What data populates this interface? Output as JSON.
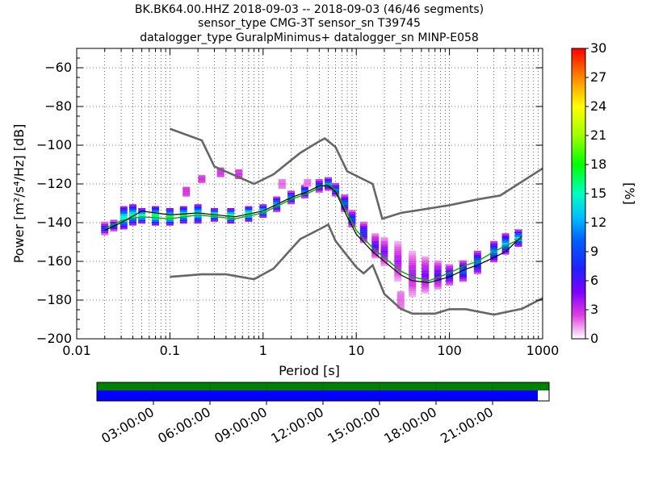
{
  "header": {
    "line1": "BK.BK64.00.HHZ   2018-09-03 -- 2018-09-03  (46/46 segments)",
    "line2": "sensor_type CMG-3T sensor_sn T39745",
    "line3": "datalogger_type GuralpMinimus+ datalogger_sn MINP-E058"
  },
  "colors": {
    "noise_models": "#666666",
    "coverage_top": "#008000",
    "coverage_bottom": "#0000ff",
    "mean_line": "#000000",
    "mode_line": "#00aa00"
  },
  "chart_data": [
    {
      "type": "heatmap",
      "xlabel": "Period [s]",
      "ylabel": "Power [m²/s⁴/Hz] [dB]",
      "x_scale": "log",
      "xlim": [
        0.01,
        1000
      ],
      "ylim": [
        -200,
        -50
      ],
      "x_ticks": [
        0.01,
        0.1,
        1,
        10,
        100,
        1000
      ],
      "x_tick_labels": [
        "0.01",
        "0.1",
        "1",
        "10",
        "100",
        "1000"
      ],
      "y_ticks": [
        -200,
        -180,
        -160,
        -140,
        -120,
        -100,
        -80,
        -60
      ],
      "y_tick_labels": [
        "−200",
        "−180",
        "−160",
        "−140",
        "−120",
        "−100",
        "−80",
        "−60"
      ],
      "grid": true,
      "colorbar": {
        "label": "[%]",
        "range": [
          0,
          30
        ],
        "ticks": [
          0,
          3,
          6,
          9,
          12,
          15,
          18,
          21,
          24,
          27,
          30
        ],
        "tick_labels": [
          "0",
          "3",
          "6",
          "9",
          "12",
          "15",
          "18",
          "21",
          "24",
          "27",
          "30"
        ]
      },
      "series": [
        {
          "x": [
            0.1,
            0.22,
            0.3,
            0.8,
            1.3,
            2.5,
            4.0,
            4.6,
            6.0,
            8.0,
            15.0,
            19.0,
            30.0,
            100.0,
            200.0,
            350.0,
            1000.0
          ],
          "y": [
            -91.5,
            -97.5,
            -111,
            -120,
            -115,
            -104,
            -98,
            -96.5,
            -101,
            -113.5,
            -120,
            -138,
            -135,
            -131,
            -128,
            -126,
            -112
          ]
        },
        {
          "x": [
            0.1,
            0.22,
            0.4,
            0.8,
            1.3,
            2.5,
            4.0,
            5.0,
            6.0,
            10.0,
            12.0,
            15.0,
            20.0,
            30.0,
            40.0,
            70.0,
            100.0,
            150.0,
            300.0,
            600.0,
            1000.0
          ],
          "y": [
            -168,
            -166.7,
            -166.7,
            -169.2,
            -163.7,
            -148.5,
            -143.5,
            -141,
            -149.5,
            -163,
            -166.2,
            -162,
            -176.8,
            -184.5,
            -187,
            -187,
            -184.7,
            -184.7,
            -187.5,
            -184.5,
            -179
          ]
        }
      ],
      "mean_line": {
        "x": [
          0.02,
          0.03,
          0.05,
          0.1,
          0.2,
          0.5,
          1.0,
          2.0,
          3.0,
          4.0,
          5.0,
          6.0,
          8.0,
          10.0,
          15.0,
          20.0,
          30.0,
          40.0,
          60.0,
          100.0,
          150.0,
          200.0,
          300.0,
          400.0,
          600.0
        ],
        "y": [
          -144,
          -140,
          -134,
          -136,
          -135,
          -137,
          -134,
          -127,
          -124,
          -121,
          -121,
          -124,
          -137,
          -146,
          -155,
          -160,
          -167,
          -170,
          -171,
          -168,
          -164,
          -162,
          -158,
          -155,
          -147
        ]
      },
      "mode_line": {
        "x": [
          0.02,
          0.03,
          0.05,
          0.1,
          0.2,
          0.5,
          1.0,
          2.0,
          3.0,
          4.0,
          5.0,
          6.0,
          8.0,
          10.0,
          15.0,
          20.0,
          30.0,
          40.0,
          60.0,
          100.0,
          150.0,
          200.0,
          300.0,
          400.0,
          600.0
        ],
        "y": [
          -143,
          -139,
          -137,
          -138,
          -136,
          -138,
          -135,
          -128,
          -125,
          -122,
          -120,
          -123,
          -135,
          -144,
          -153,
          -158,
          -165,
          -168,
          -170,
          -166,
          -162,
          -160,
          -155,
          -152,
          -148
        ]
      },
      "density": [
        {
          "x": 0.02,
          "ymin": -146,
          "ymax": -140,
          "pct": 8
        },
        {
          "x": 0.025,
          "ymin": -144,
          "ymax": -139,
          "pct": 10
        },
        {
          "x": 0.032,
          "ymin": -143,
          "ymax": -132,
          "pct": 16
        },
        {
          "x": 0.04,
          "ymin": -141,
          "ymax": -131,
          "pct": 16
        },
        {
          "x": 0.05,
          "ymin": -140,
          "ymax": -133,
          "pct": 17
        },
        {
          "x": 0.07,
          "ymin": -141,
          "ymax": -132,
          "pct": 18
        },
        {
          "x": 0.1,
          "ymin": -141,
          "ymax": -133,
          "pct": 18
        },
        {
          "x": 0.14,
          "ymin": -140,
          "ymax": -132,
          "pct": 17
        },
        {
          "x": 0.2,
          "ymin": -140,
          "ymax": -131,
          "pct": 16
        },
        {
          "x": 0.3,
          "ymin": -139,
          "ymax": -133,
          "pct": 17
        },
        {
          "x": 0.45,
          "ymin": -140,
          "ymax": -133,
          "pct": 18
        },
        {
          "x": 0.7,
          "ymin": -139,
          "ymax": -132,
          "pct": 18
        },
        {
          "x": 1.0,
          "ymin": -137,
          "ymax": -131,
          "pct": 15
        },
        {
          "x": 1.4,
          "ymin": -134,
          "ymax": -127,
          "pct": 13
        },
        {
          "x": 2.0,
          "ymin": -130,
          "ymax": -124,
          "pct": 12
        },
        {
          "x": 2.8,
          "ymin": -127,
          "ymax": -121,
          "pct": 11
        },
        {
          "x": 4.0,
          "ymin": -124,
          "ymax": -118,
          "pct": 10
        },
        {
          "x": 5.0,
          "ymin": -123,
          "ymax": -117,
          "pct": 12
        },
        {
          "x": 6.0,
          "ymin": -126,
          "ymax": -120,
          "pct": 11
        },
        {
          "x": 7.5,
          "ymin": -134,
          "ymax": -126,
          "pct": 10
        },
        {
          "x": 9.0,
          "ymin": -142,
          "ymax": -134,
          "pct": 9
        },
        {
          "x": 12.0,
          "ymin": -150,
          "ymax": -140,
          "pct": 8
        },
        {
          "x": 16.0,
          "ymin": -158,
          "ymax": -146,
          "pct": 6
        },
        {
          "x": 20.0,
          "ymin": -162,
          "ymax": -148,
          "pct": 5
        },
        {
          "x": 28.0,
          "ymin": -170,
          "ymax": -150,
          "pct": 4
        },
        {
          "x": 40.0,
          "ymin": -178,
          "ymax": -155,
          "pct": 4
        },
        {
          "x": 55.0,
          "ymin": -176,
          "ymax": -158,
          "pct": 5
        },
        {
          "x": 75.0,
          "ymin": -174,
          "ymax": -160,
          "pct": 6
        },
        {
          "x": 100.0,
          "ymin": -172,
          "ymax": -162,
          "pct": 8
        },
        {
          "x": 140.0,
          "ymin": -170,
          "ymax": -160,
          "pct": 10
        },
        {
          "x": 200.0,
          "ymin": -166,
          "ymax": -155,
          "pct": 11
        },
        {
          "x": 300.0,
          "ymin": -160,
          "ymax": -150,
          "pct": 12
        },
        {
          "x": 400.0,
          "ymin": -156,
          "ymax": -146,
          "pct": 13
        },
        {
          "x": 550.0,
          "ymin": -152,
          "ymax": -144,
          "pct": 14
        }
      ],
      "outliers": [
        {
          "x": 0.15,
          "ymin": -126,
          "ymax": -122,
          "pct": 3
        },
        {
          "x": 0.22,
          "ymin": -119,
          "ymax": -116,
          "pct": 3
        },
        {
          "x": 0.35,
          "ymin": -116,
          "ymax": -112,
          "pct": 3
        },
        {
          "x": 0.55,
          "ymin": -117,
          "ymax": -113,
          "pct": 3
        },
        {
          "x": 1.6,
          "ymin": -122,
          "ymax": -118,
          "pct": 2
        },
        {
          "x": 3.0,
          "ymin": -121,
          "ymax": -118,
          "pct": 2
        },
        {
          "x": 30.0,
          "ymin": -184,
          "ymax": -176,
          "pct": 2
        }
      ]
    },
    {
      "type": "bar",
      "title": "",
      "x_tick_labels": [
        "03:00:00",
        "06:00:00",
        "09:00:00",
        "12:00:00",
        "15:00:00",
        "18:00:00",
        "21:00:00"
      ],
      "coverage_top_fraction": 1.0,
      "coverage_bottom_fraction": 0.975
    }
  ]
}
